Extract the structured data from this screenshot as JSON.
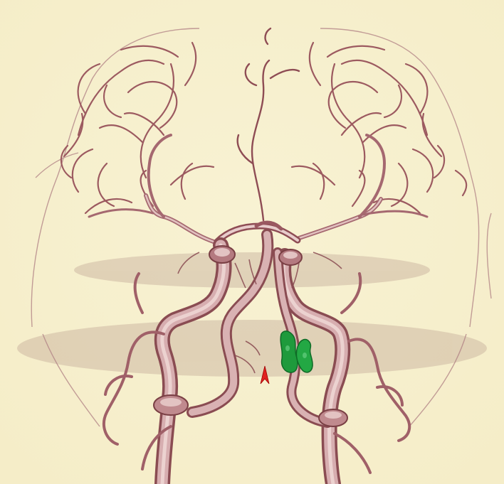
{
  "image": {
    "kind": "3D cerebral angiography volume rendering (frontal view)",
    "background_color": "#f7f0cf",
    "vessel_color": "#c89a9c",
    "vessel_shadow_color": "#7a3f44",
    "vessel_highlight_color": "#efd6d3",
    "lesion_color": "#1e9a3c",
    "marker_color": "#e02020"
  },
  "markers": [
    {
      "icon": "arrowhead-marker-icon",
      "color": "#e02020"
    }
  ],
  "highlights": [
    {
      "icon": "green-lesion-highlight",
      "color": "#1e9a3c"
    }
  ]
}
